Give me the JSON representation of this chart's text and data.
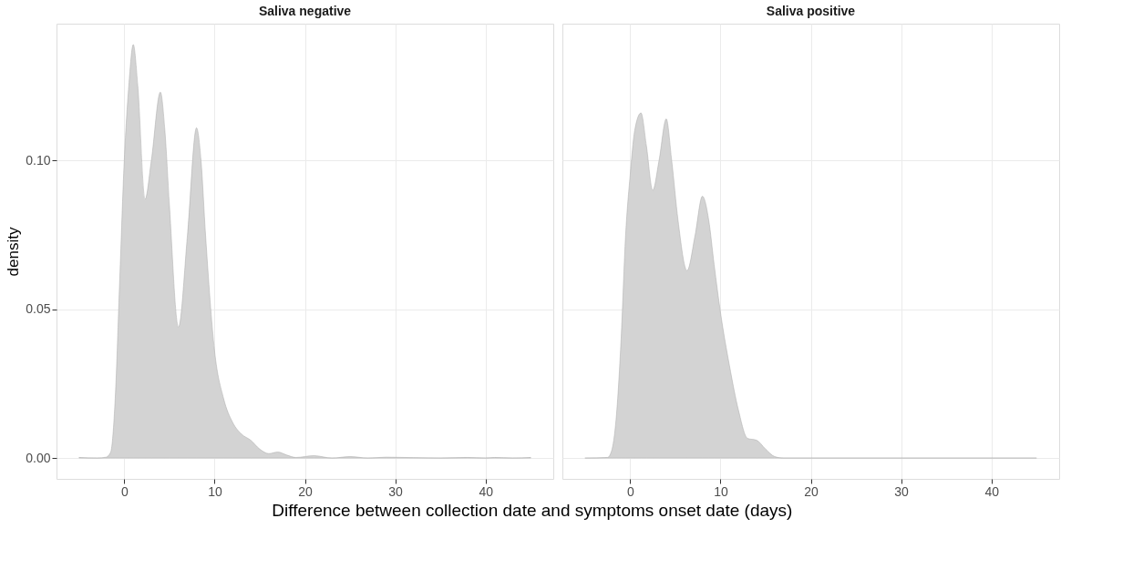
{
  "chart_data": [
    {
      "type": "area",
      "title": "Saliva negative",
      "ylabel": "density",
      "xlabel": "Difference between collection date and symptoms onset date (days)",
      "x": [
        -5,
        -3,
        -2,
        -1.5,
        -1,
        -0.5,
        0,
        0.5,
        1,
        1.5,
        2.3,
        3,
        4,
        4.5,
        5,
        6,
        7,
        8,
        8.5,
        9,
        10,
        11,
        12,
        13,
        14,
        15,
        16,
        17,
        18,
        19,
        21,
        23,
        25,
        27,
        29,
        35,
        38,
        40,
        41,
        43,
        45
      ],
      "series": [
        {
          "color": "#d3d3d3",
          "values": [
            0.0002,
            0,
            0.0003,
            0.002,
            0.02,
            0.06,
            0.1,
            0.125,
            0.139,
            0.125,
            0.087,
            0.1,
            0.123,
            0.11,
            0.085,
            0.044,
            0.075,
            0.111,
            0.1,
            0.075,
            0.036,
            0.02,
            0.012,
            0.008,
            0.006,
            0.003,
            0.0015,
            0.002,
            0.001,
            0.0002,
            0.0008,
            0,
            0.0005,
            0,
            0.0003,
            0,
            0.0002,
            0,
            0.0002,
            0,
            0.0002
          ]
        }
      ],
      "xlim": [
        -7.5,
        47.5
      ],
      "xticks": [
        0,
        10,
        20,
        30,
        40
      ],
      "ylim": [
        -0.007,
        0.146
      ],
      "yticks": [
        {
          "value": 0,
          "label": "0.00"
        },
        {
          "value": 0.05,
          "label": "0.05"
        },
        {
          "value": 0.1,
          "label": "0.10"
        }
      ],
      "grid": true
    },
    {
      "type": "area",
      "title": "Saliva positive",
      "x": [
        -5,
        -2.5,
        -2,
        -1.5,
        -1,
        -0.5,
        0,
        0.5,
        1.2,
        1.8,
        2.5,
        3.2,
        4,
        4.6,
        5.3,
        6.3,
        7.2,
        8,
        8.7,
        9.3,
        10,
        11,
        12,
        13,
        14,
        15,
        16,
        17,
        45
      ],
      "series": [
        {
          "color": "#d3d3d3",
          "values": [
            0,
            0.0002,
            0.003,
            0.015,
            0.04,
            0.075,
            0.095,
            0.11,
            0.116,
            0.105,
            0.09,
            0.1,
            0.114,
            0.1,
            0.08,
            0.063,
            0.075,
            0.088,
            0.08,
            0.065,
            0.049,
            0.031,
            0.016,
            0.0066,
            0.006,
            0.003,
            0.0005,
            0,
            0
          ]
        }
      ],
      "xlim": [
        -7.5,
        47.5
      ],
      "xticks": [
        0,
        10,
        20,
        30,
        40
      ],
      "ylim": [
        -0.007,
        0.146
      ],
      "yticks": [
        0,
        0.05,
        0.1
      ],
      "tick_labels": "x",
      "grid": true
    }
  ]
}
